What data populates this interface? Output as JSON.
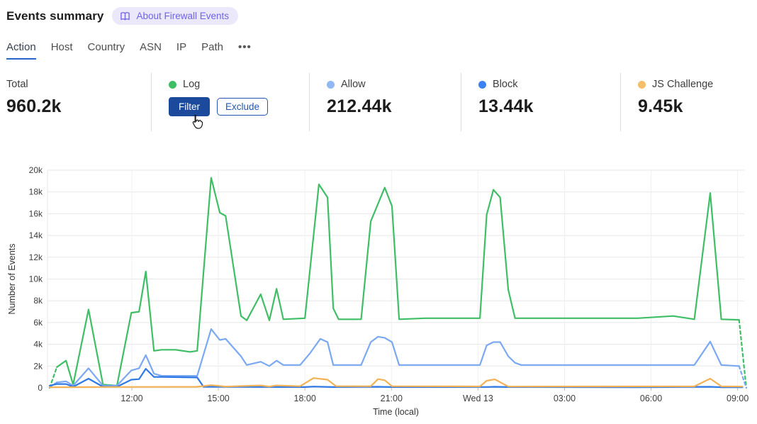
{
  "header": {
    "title": "Events summary",
    "badge_label": "About Firewall Events",
    "badge_icon": "open-book-icon"
  },
  "tabs": {
    "items": [
      {
        "label": "Action",
        "active": true
      },
      {
        "label": "Host",
        "active": false
      },
      {
        "label": "Country",
        "active": false
      },
      {
        "label": "ASN",
        "active": false
      },
      {
        "label": "IP",
        "active": false
      },
      {
        "label": "Path",
        "active": false
      },
      {
        "label": "•••",
        "active": false,
        "more": true
      }
    ]
  },
  "stats": {
    "total": {
      "label": "Total",
      "value": "960.2k"
    },
    "log": {
      "label": "Log",
      "color": "#3FBE66",
      "filter_label": "Filter",
      "exclude_label": "Exclude"
    },
    "allow": {
      "label": "Allow",
      "value": "212.44k",
      "color": "#8FB8F5"
    },
    "block": {
      "label": "Block",
      "value": "13.44k",
      "color": "#3C82F0"
    },
    "js_challenge": {
      "label": "JS Challenge",
      "value": "9.45k",
      "color": "#F5BE6B"
    }
  },
  "icons": {
    "badge": "open-book-icon",
    "more_tab": "ellipsis-icon",
    "cursor": "hand-pointer-icon"
  },
  "chart_data": {
    "type": "line",
    "xlabel": "Time (local)",
    "ylabel": "Number of Events",
    "x_unit": "minutes after Tue 09:00 local",
    "ylim": [
      0,
      20000
    ],
    "grid": true,
    "y_ticks": [
      {
        "v": 0,
        "label": "0"
      },
      {
        "v": 2,
        "label": "2k"
      },
      {
        "v": 4,
        "label": "4k"
      },
      {
        "v": 6,
        "label": "6k"
      },
      {
        "v": 8,
        "label": "8k"
      },
      {
        "v": 10,
        "label": "10k"
      },
      {
        "v": 12,
        "label": "12k"
      },
      {
        "v": 14,
        "label": "14k"
      },
      {
        "v": 16,
        "label": "16k"
      },
      {
        "v": 18,
        "label": "18k"
      },
      {
        "v": 20,
        "label": "20k"
      }
    ],
    "x_ticks": [
      {
        "t": 180,
        "label": "12:00"
      },
      {
        "t": 360,
        "label": "15:00"
      },
      {
        "t": 540,
        "label": "18:00"
      },
      {
        "t": 720,
        "label": "21:00"
      },
      {
        "t": 900,
        "label": "Wed 13"
      },
      {
        "t": 1080,
        "label": "03:00"
      },
      {
        "t": 1260,
        "label": "06:00"
      },
      {
        "t": 1440,
        "label": "09:00"
      }
    ],
    "value_unit": "thousands of events",
    "series": [
      {
        "name": "Log",
        "color": "#3FBE66",
        "dashed_head": true,
        "dashed_tail": true,
        "points": [
          [
            9,
            0
          ],
          [
            24,
            1.9
          ],
          [
            43,
            2.5
          ],
          [
            58,
            0.3
          ],
          [
            90,
            7.2
          ],
          [
            120,
            0.3
          ],
          [
            149,
            0.2
          ],
          [
            179,
            6.9
          ],
          [
            195,
            7.0
          ],
          [
            209,
            10.7
          ],
          [
            226,
            3.4
          ],
          [
            242,
            3.5
          ],
          [
            271,
            3.5
          ],
          [
            301,
            3.3
          ],
          [
            316,
            3.4
          ],
          [
            345,
            19.3
          ],
          [
            363,
            16.1
          ],
          [
            375,
            15.8
          ],
          [
            407,
            6.6
          ],
          [
            419,
            6.2
          ],
          [
            448,
            8.6
          ],
          [
            466,
            6.2
          ],
          [
            481,
            9.1
          ],
          [
            495,
            6.3
          ],
          [
            540,
            6.4
          ],
          [
            569,
            18.7
          ],
          [
            587,
            17.5
          ],
          [
            599,
            7.3
          ],
          [
            610,
            6.3
          ],
          [
            657,
            6.3
          ],
          [
            677,
            15.3
          ],
          [
            706,
            18.4
          ],
          [
            721,
            16.7
          ],
          [
            736,
            6.3
          ],
          [
            790,
            6.4
          ],
          [
            904,
            6.4
          ],
          [
            918,
            15.9
          ],
          [
            932,
            18.2
          ],
          [
            946,
            17.5
          ],
          [
            963,
            9.0
          ],
          [
            977,
            6.4
          ],
          [
            1085,
            6.4
          ],
          [
            1232,
            6.4
          ],
          [
            1306,
            6.6
          ],
          [
            1350,
            6.3
          ],
          [
            1383,
            17.9
          ],
          [
            1406,
            6.3
          ],
          [
            1443,
            6.25
          ],
          [
            1458,
            0
          ]
        ]
      },
      {
        "name": "Allow",
        "color": "#7AA8F2",
        "dashed_head": true,
        "dashed_tail": true,
        "points": [
          [
            9,
            0.05
          ],
          [
            24,
            0.5
          ],
          [
            43,
            0.6
          ],
          [
            58,
            0.2
          ],
          [
            90,
            1.8
          ],
          [
            120,
            0.2
          ],
          [
            149,
            0.2
          ],
          [
            179,
            1.6
          ],
          [
            195,
            1.8
          ],
          [
            209,
            3.0
          ],
          [
            226,
            1.3
          ],
          [
            242,
            1.1
          ],
          [
            316,
            1.1
          ],
          [
            345,
            5.4
          ],
          [
            363,
            4.4
          ],
          [
            375,
            4.5
          ],
          [
            407,
            2.9
          ],
          [
            419,
            2.1
          ],
          [
            448,
            2.4
          ],
          [
            466,
            2.0
          ],
          [
            481,
            2.5
          ],
          [
            495,
            2.1
          ],
          [
            530,
            2.1
          ],
          [
            551,
            3.2
          ],
          [
            572,
            4.5
          ],
          [
            587,
            4.2
          ],
          [
            599,
            2.1
          ],
          [
            657,
            2.1
          ],
          [
            677,
            4.2
          ],
          [
            692,
            4.7
          ],
          [
            706,
            4.6
          ],
          [
            721,
            4.2
          ],
          [
            736,
            2.1
          ],
          [
            904,
            2.1
          ],
          [
            918,
            3.9
          ],
          [
            932,
            4.2
          ],
          [
            946,
            4.2
          ],
          [
            963,
            2.9
          ],
          [
            977,
            2.3
          ],
          [
            990,
            2.1
          ],
          [
            1232,
            2.1
          ],
          [
            1350,
            2.1
          ],
          [
            1383,
            4.25
          ],
          [
            1406,
            2.1
          ],
          [
            1443,
            2.0
          ],
          [
            1458,
            0
          ]
        ]
      },
      {
        "name": "Block",
        "color": "#2E79E5",
        "dashed_head": false,
        "dashed_tail": false,
        "points": [
          [
            9,
            0.2
          ],
          [
            24,
            0.35
          ],
          [
            43,
            0.35
          ],
          [
            58,
            0.1
          ],
          [
            90,
            0.85
          ],
          [
            120,
            0.1
          ],
          [
            149,
            0.1
          ],
          [
            179,
            0.75
          ],
          [
            195,
            0.8
          ],
          [
            209,
            1.75
          ],
          [
            226,
            1.0
          ],
          [
            242,
            1.0
          ],
          [
            316,
            0.95
          ],
          [
            329,
            0.1
          ],
          [
            540,
            0.07
          ],
          [
            558,
            0.12
          ],
          [
            599,
            0.07
          ],
          [
            692,
            0.1
          ],
          [
            721,
            0.07
          ],
          [
            918,
            0.08
          ],
          [
            935,
            0.1
          ],
          [
            963,
            0.07
          ],
          [
            1232,
            0.06
          ],
          [
            1383,
            0.1
          ],
          [
            1406,
            0.06
          ],
          [
            1450,
            0.05
          ]
        ]
      },
      {
        "name": "JS Challenge",
        "color": "#F2B255",
        "dashed_head": false,
        "dashed_tail": false,
        "points": [
          [
            9,
            0.05
          ],
          [
            120,
            0.08
          ],
          [
            316,
            0.1
          ],
          [
            345,
            0.25
          ],
          [
            375,
            0.12
          ],
          [
            448,
            0.22
          ],
          [
            466,
            0.12
          ],
          [
            481,
            0.22
          ],
          [
            530,
            0.15
          ],
          [
            558,
            0.9
          ],
          [
            587,
            0.75
          ],
          [
            605,
            0.15
          ],
          [
            677,
            0.15
          ],
          [
            692,
            0.8
          ],
          [
            706,
            0.7
          ],
          [
            721,
            0.15
          ],
          [
            904,
            0.13
          ],
          [
            918,
            0.65
          ],
          [
            935,
            0.78
          ],
          [
            963,
            0.12
          ],
          [
            1232,
            0.13
          ],
          [
            1350,
            0.14
          ],
          [
            1383,
            0.85
          ],
          [
            1406,
            0.14
          ],
          [
            1450,
            0.12
          ]
        ]
      }
    ]
  }
}
